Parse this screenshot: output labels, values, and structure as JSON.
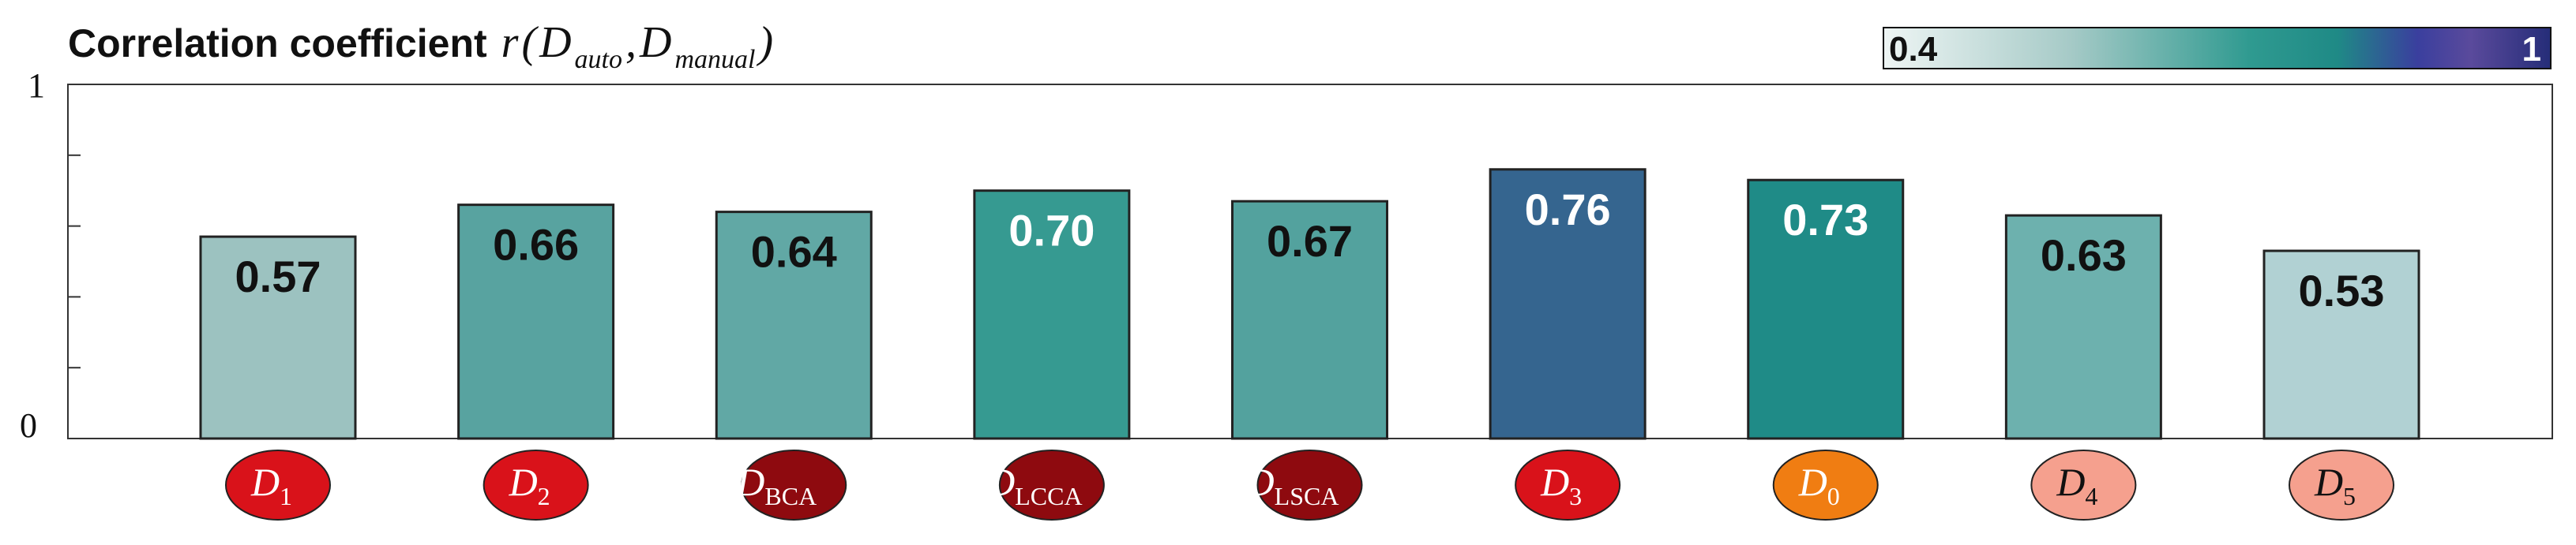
{
  "chart_data": {
    "type": "bar",
    "title": {
      "prefix": "Correlation coefficient",
      "r": "r",
      "open": "(",
      "d1": "D",
      "d1_sub": "auto",
      "comma": ",",
      "d2": "D",
      "d2_sub": "manual",
      "close": ")"
    },
    "ylim": [
      0,
      1
    ],
    "yticks": [
      0,
      0.2,
      0.4,
      0.6,
      0.8,
      1
    ],
    "ytick_labels": {
      "0": "0",
      "1": "1"
    },
    "colorbar": {
      "min_label": "0.4",
      "max_label": "1",
      "min": 0.4,
      "max": 1
    },
    "categories": [
      {
        "main": "D",
        "sub": "1",
        "sub_italic": false,
        "fill": "#d9121a",
        "text_color": "#ffffff"
      },
      {
        "main": "D",
        "sub": "2",
        "sub_italic": false,
        "fill": "#d9121a",
        "text_color": "#ffffff"
      },
      {
        "main": "D",
        "sub": "BCA",
        "sub_italic": false,
        "fill": "#8e0a0f",
        "text_color": "#ffffff"
      },
      {
        "main": "D",
        "sub": "LCCA",
        "sub_italic": false,
        "fill": "#8e0a0f",
        "text_color": "#ffffff"
      },
      {
        "main": "D",
        "sub": "LSCA",
        "sub_italic": false,
        "fill": "#8e0a0f",
        "text_color": "#ffffff"
      },
      {
        "main": "D",
        "sub": "3",
        "sub_italic": false,
        "fill": "#d9121a",
        "text_color": "#ffffff"
      },
      {
        "main": "D",
        "sub": "0",
        "sub_italic": false,
        "fill": "#f07d12",
        "text_color": "#ffffff"
      },
      {
        "main": "D",
        "sub": "4",
        "sub_italic": false,
        "fill": "#f5a08e",
        "text_color": "#111111"
      },
      {
        "main": "D",
        "sub": "5",
        "sub_italic": false,
        "fill": "#f5a08e",
        "text_color": "#111111"
      }
    ],
    "values": [
      0.57,
      0.66,
      0.64,
      0.7,
      0.67,
      0.76,
      0.73,
      0.63,
      0.53
    ],
    "value_labels": [
      "0.57",
      "0.66",
      "0.64",
      "0.70",
      "0.67",
      "0.76",
      "0.73",
      "0.63",
      "0.53"
    ],
    "bar_colors": [
      "#9cc2c0",
      "#58a3a0",
      "#61a8a5",
      "#369a91",
      "#53a29e",
      "#35658f",
      "#1f8b87",
      "#6db1ae",
      "#b1d1d3"
    ],
    "value_label_colors": [
      "#111111",
      "#111111",
      "#111111",
      "#ffffff",
      "#111111",
      "#ffffff",
      "#ffffff",
      "#111111",
      "#111111"
    ],
    "grid": false
  }
}
